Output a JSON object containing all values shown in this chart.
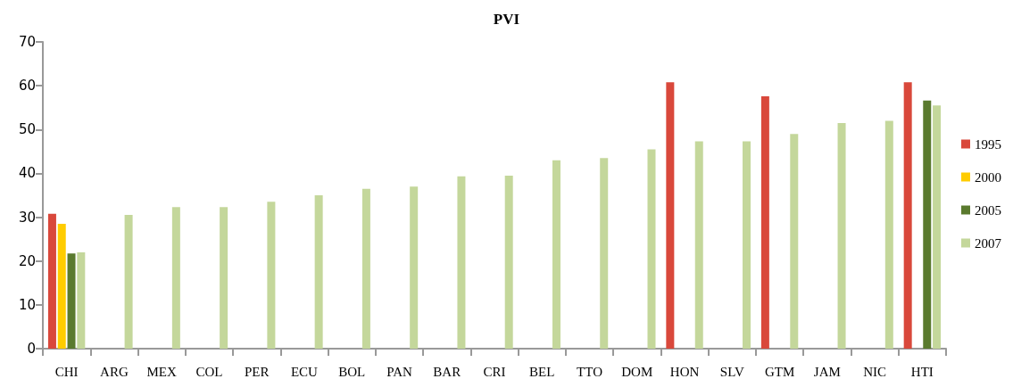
{
  "chart_data": {
    "type": "bar",
    "title": "PVI",
    "categories": [
      "CHI",
      "ARG",
      "MEX",
      "COL",
      "PER",
      "ECU",
      "BOL",
      "PAN",
      "BAR",
      "CRI",
      "BEL",
      "TTO",
      "DOM",
      "HON",
      "SLV",
      "GTM",
      "JAM",
      "NIC",
      "HTI"
    ],
    "series": [
      {
        "name": "1995",
        "color": "#d9483b",
        "values": [
          30.8,
          null,
          null,
          null,
          null,
          null,
          null,
          null,
          null,
          null,
          null,
          null,
          null,
          60.8,
          null,
          57.6,
          null,
          null,
          60.8
        ]
      },
      {
        "name": "2000",
        "color": "#ffcc00",
        "values": [
          28.5,
          null,
          null,
          null,
          null,
          null,
          null,
          null,
          null,
          null,
          null,
          null,
          null,
          null,
          null,
          null,
          null,
          null,
          null
        ]
      },
      {
        "name": "2005",
        "color": "#5a7a2e",
        "values": [
          21.7,
          null,
          null,
          null,
          null,
          null,
          null,
          null,
          null,
          null,
          null,
          null,
          null,
          null,
          null,
          null,
          null,
          null,
          56.6
        ]
      },
      {
        "name": "2007",
        "color": "#c4d79b",
        "values": [
          22,
          30.5,
          32.3,
          32.3,
          33.5,
          35,
          36.5,
          37,
          39.3,
          39.5,
          43,
          43.5,
          45.5,
          47.3,
          47.3,
          49,
          51.5,
          52,
          55.5
        ]
      }
    ],
    "ylim": [
      0,
      70
    ],
    "yticks": [
      0,
      10,
      20,
      30,
      40,
      50,
      60,
      70
    ],
    "grid": false,
    "legend": "right"
  }
}
